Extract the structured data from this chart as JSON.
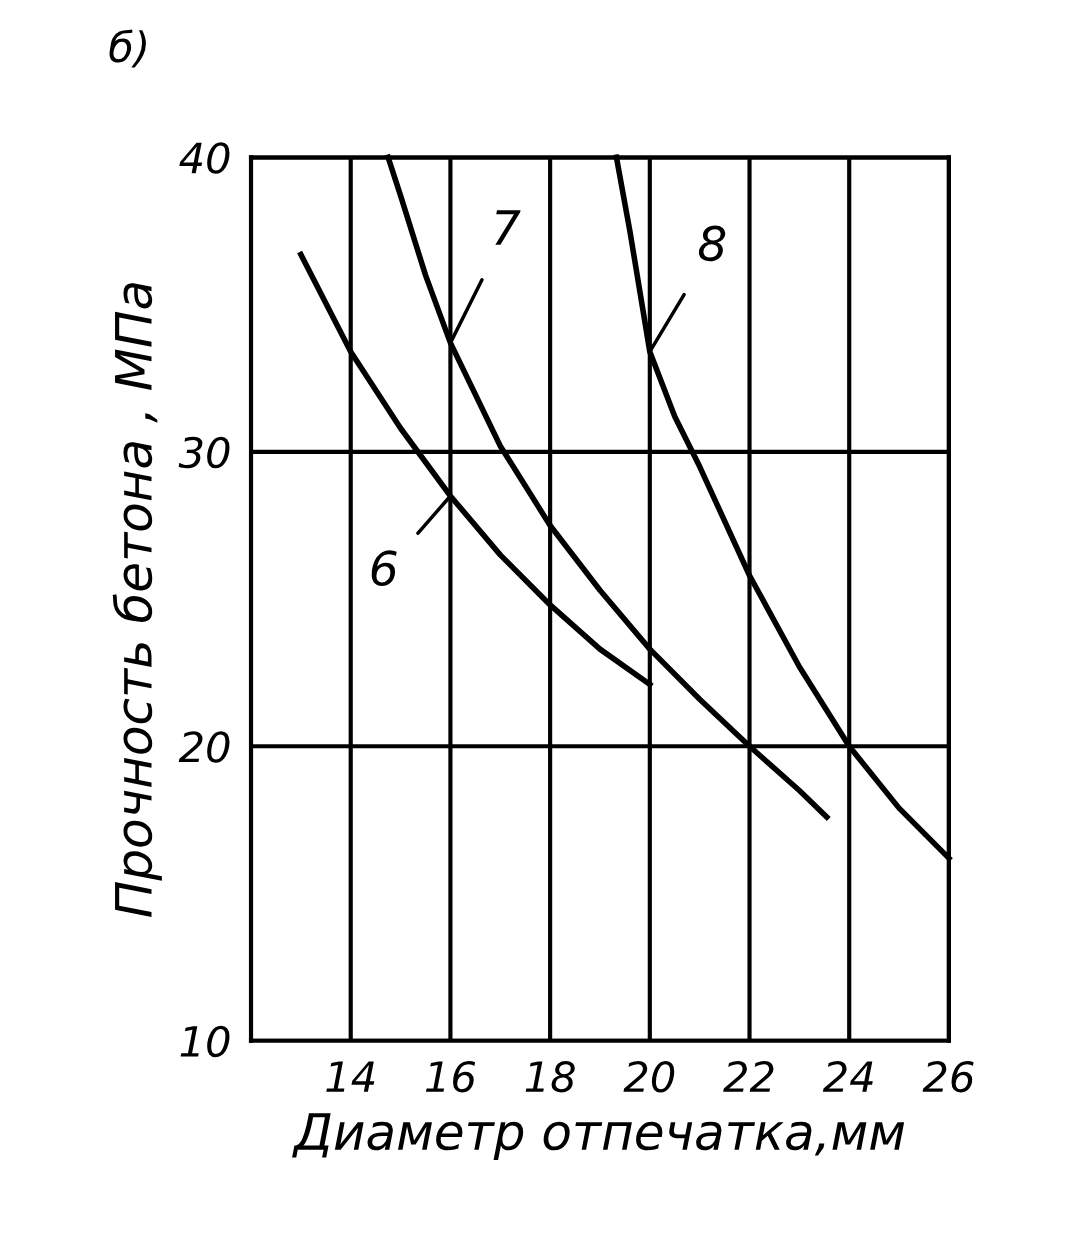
{
  "chart_data": {
    "type": "line",
    "xlabel": "Диаметр отпечатка,мм",
    "ylabel": "Прочность бетона , МПа",
    "annotations": [
      "б)"
    ],
    "xlim": [
      12,
      26
    ],
    "ylim": [
      10,
      40
    ],
    "xticks": [
      14,
      16,
      18,
      20,
      22,
      24,
      26
    ],
    "yticks": [
      10,
      20,
      30,
      40
    ],
    "grid": true,
    "marker": "none",
    "line_style": "solid",
    "series": [
      {
        "name": "6",
        "color": "#000000",
        "x": [
          13,
          14,
          15,
          16,
          17,
          18,
          19,
          20
        ],
        "values": [
          36.7,
          33.4,
          30.8,
          28.5,
          26.5,
          24.8,
          23.3,
          22.1
        ]
      },
      {
        "name": "7",
        "color": "#000000",
        "x": [
          14.75,
          15,
          15.5,
          16,
          17,
          18,
          19,
          20,
          21,
          22,
          23,
          23.55
        ],
        "values": [
          40,
          38.7,
          36,
          33.7,
          30.2,
          27.5,
          25.3,
          23.3,
          21.6,
          20,
          18.5,
          17.6
        ]
      },
      {
        "name": "8",
        "color": "#000000",
        "x": [
          19.33,
          19.6,
          20,
          20.5,
          21,
          22,
          23,
          24,
          25,
          26
        ],
        "values": [
          40,
          37.5,
          33.4,
          31.2,
          29.5,
          25.8,
          22.7,
          20,
          17.9,
          16.2
        ]
      }
    ]
  }
}
